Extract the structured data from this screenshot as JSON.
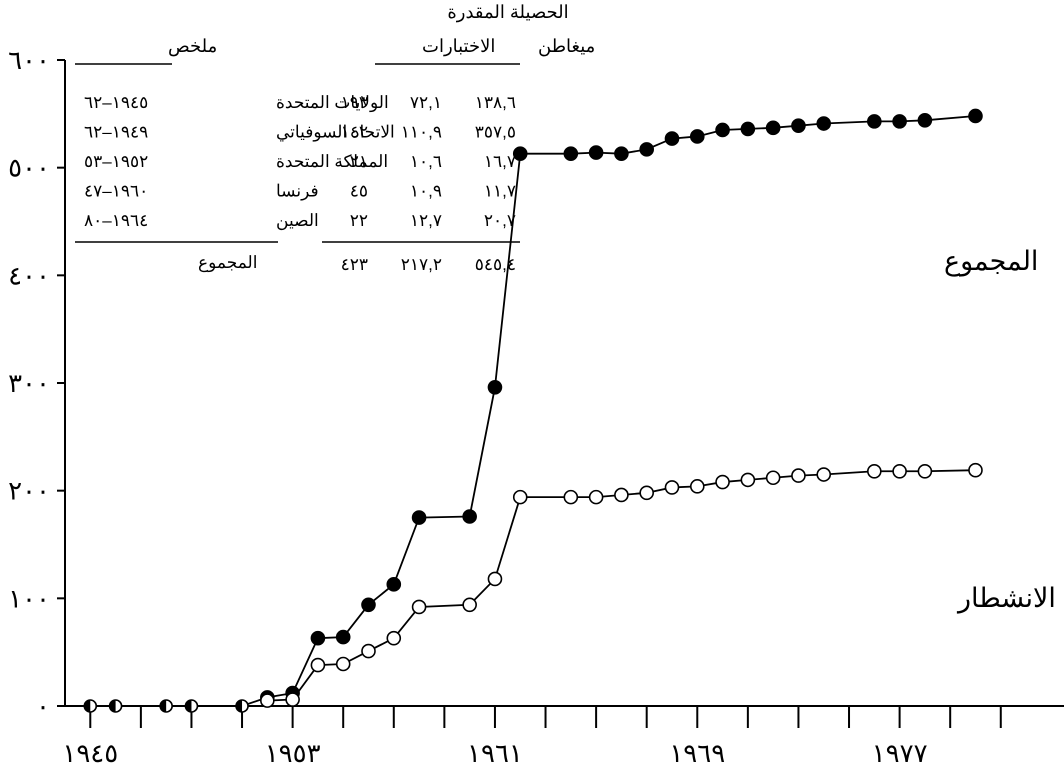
{
  "chart_data": {
    "type": "line",
    "title": "",
    "xlabel": "",
    "ylabel": "",
    "xlim": [
      1944,
      1983.5
    ],
    "ylim": [
      0,
      600
    ],
    "grid": false,
    "x_tick_values": [
      1945,
      1947,
      1949,
      1951,
      1953,
      1955,
      1957,
      1959,
      1961,
      1963,
      1965,
      1967,
      1969,
      1971,
      1973,
      1975,
      1977,
      1979,
      1981
    ],
    "x_tick_labels": [
      {
        "x": 1945,
        "label": "١٩٤٥"
      },
      {
        "x": 1953,
        "label": "١٩٥٣"
      },
      {
        "x": 1961,
        "label": "١٩٦١"
      },
      {
        "x": 1969,
        "label": "١٩٦٩"
      },
      {
        "x": 1977,
        "label": "١٩٧٧"
      }
    ],
    "y_ticks": [
      {
        "value": 0,
        "label": "٠"
      },
      {
        "value": 100,
        "label": "١٠٠"
      },
      {
        "value": 200,
        "label": "٢٠٠"
      },
      {
        "value": 300,
        "label": "٣٠٠"
      },
      {
        "value": 400,
        "label": "٤٠٠"
      },
      {
        "value": 500,
        "label": "٥٠٠"
      },
      {
        "value": 600,
        "label": "٦٠٠"
      }
    ],
    "series": [
      {
        "name": "المجموع",
        "marker": "filled-circle",
        "points": [
          [
            1945,
            0
          ],
          [
            1946,
            0
          ],
          [
            1948,
            0
          ],
          [
            1949,
            0
          ],
          [
            1951,
            0
          ],
          [
            1952,
            8
          ],
          [
            1953,
            12
          ],
          [
            1954,
            63
          ],
          [
            1955,
            64
          ],
          [
            1956,
            94
          ],
          [
            1957,
            113
          ],
          [
            1958,
            175
          ],
          [
            1960,
            176
          ],
          [
            1961,
            296
          ],
          [
            1962,
            513
          ],
          [
            1964,
            513
          ],
          [
            1965,
            514
          ],
          [
            1966,
            513
          ],
          [
            1967,
            517
          ],
          [
            1968,
            527
          ],
          [
            1969,
            529
          ],
          [
            1970,
            535
          ],
          [
            1971,
            536
          ],
          [
            1972,
            537
          ],
          [
            1973,
            539
          ],
          [
            1974,
            541
          ],
          [
            1976,
            543
          ],
          [
            1977,
            543
          ],
          [
            1978,
            544
          ],
          [
            1980,
            548
          ]
        ]
      },
      {
        "name": "الانشطار",
        "marker": "open-circle",
        "points": [
          [
            1952,
            5
          ],
          [
            1953,
            6
          ],
          [
            1954,
            38
          ],
          [
            1955,
            39
          ],
          [
            1956,
            51
          ],
          [
            1957,
            63
          ],
          [
            1958,
            92
          ],
          [
            1960,
            94
          ],
          [
            1961,
            118
          ],
          [
            1962,
            194
          ],
          [
            1964,
            194
          ],
          [
            1965,
            194
          ],
          [
            1966,
            196
          ],
          [
            1967,
            198
          ],
          [
            1968,
            203
          ],
          [
            1969,
            204
          ],
          [
            1970,
            208
          ],
          [
            1971,
            210
          ],
          [
            1972,
            212
          ],
          [
            1973,
            214
          ],
          [
            1974,
            215
          ],
          [
            1976,
            218
          ],
          [
            1977,
            218
          ],
          [
            1978,
            218
          ],
          [
            1980,
            219
          ]
        ]
      }
    ],
    "annotations": {
      "total_label": "المجموع",
      "fission_label": "الانشطار"
    }
  },
  "summary_table": {
    "title": "الحصيلة المقدرة",
    "col_megaton": "ميغاطن",
    "col_tests": "الاختبارات",
    "col_summary": "ملخص",
    "rows": [
      {
        "megaton": "١٣٨,٦",
        "tests_a": "٧٢,١",
        "tests_b": "١٩٣",
        "country": "الولايات المتحدة",
        "years": "١٩٤٥–٦٢"
      },
      {
        "megaton": "٣٥٧,٥",
        "tests_a": "١١٠,٩",
        "tests_b": "١٤٢",
        "country": "الاتحاد السوفياتي",
        "years": "١٩٤٩–٦٢"
      },
      {
        "megaton": "١٦,٧",
        "tests_a": "١٠,٦",
        "tests_b": "٢١",
        "country": "المملكة المتحدة",
        "years": "١٩٥٢–٥٣"
      },
      {
        "megaton": "١١,٧",
        "tests_a": "١٠,٩",
        "tests_b": "٤٥",
        "country": "فرنسا",
        "years": "١٩٦٠–٤٧"
      },
      {
        "megaton": "٢٠,٧",
        "tests_a": "١٢,٧",
        "tests_b": "٢٢",
        "country": "الصين",
        "years": "١٩٦٤–٨٠"
      }
    ],
    "total": {
      "megaton": "٥٤٥,٤",
      "tests_a": "٢١٧,٢",
      "tests_b": "٤٢٣",
      "label": "المجموع"
    }
  }
}
